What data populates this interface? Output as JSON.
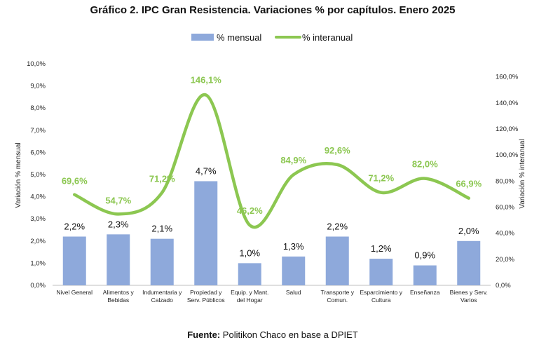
{
  "chart_data": {
    "type": "bar",
    "title": "Gráfico 2. IPC Gran Resistencia. Variaciones % por capítulos. Enero 2025",
    "categories": [
      [
        "Nivel General"
      ],
      [
        "Alimentos y",
        "Bebidas"
      ],
      [
        "Indumentaria y",
        "Calzado"
      ],
      [
        "Propiedad y",
        "Serv. Públicos"
      ],
      [
        "Equip. y Mant.",
        "del Hogar"
      ],
      [
        "Salud"
      ],
      [
        "Transporte y",
        "Comun."
      ],
      [
        "Esparcimiento y",
        "Cultura"
      ],
      [
        "Enseñanza"
      ],
      [
        "Bienes y Serv.",
        "Varios"
      ]
    ],
    "series": [
      {
        "name": "% mensual",
        "type": "bar",
        "axis": "left",
        "color": "#8EA9DB",
        "values": [
          2.2,
          2.3,
          2.1,
          4.7,
          1.0,
          1.3,
          2.2,
          1.2,
          0.9,
          2.0
        ],
        "labels": [
          "2,2%",
          "2,3%",
          "2,1%",
          "4,7%",
          "1,0%",
          "1,3%",
          "2,2%",
          "1,2%",
          "0,9%",
          "2,0%"
        ]
      },
      {
        "name": "% interanual",
        "type": "line",
        "smooth": true,
        "axis": "right",
        "color": "#8CC751",
        "values": [
          69.6,
          54.7,
          71.2,
          146.1,
          46.2,
          84.9,
          92.6,
          71.2,
          82.0,
          66.9
        ],
        "labels": [
          "69,6%",
          "54,7%",
          "71,2%",
          "146,1%",
          "46,2%",
          "84,9%",
          "92,6%",
          "71,2%",
          "82,0%",
          "66,9%"
        ]
      }
    ],
    "ylabel_left": "Variación % mensual",
    "ylabel_right": "Variación % interanual",
    "ylim_left": [
      0,
      10
    ],
    "ylim_right": [
      0,
      170
    ],
    "yticks_left": [
      "0,0%",
      "1,0%",
      "2,0%",
      "3,0%",
      "4,0%",
      "5,0%",
      "6,0%",
      "7,0%",
      "8,0%",
      "9,0%",
      "10,0%"
    ],
    "yticks_right": [
      "0,0%",
      "20,0%",
      "40,0%",
      "60,0%",
      "80,0%",
      "100,0%",
      "120,0%",
      "140,0%",
      "160,0%"
    ],
    "grid": false,
    "legend_position": "top"
  },
  "source": {
    "label": "Fuente:",
    "text": " Politikon Chaco en base a DPIET"
  }
}
